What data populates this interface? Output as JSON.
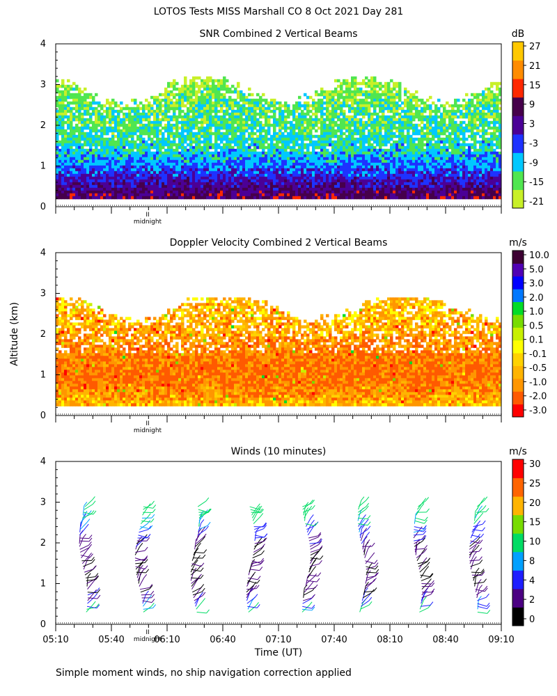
{
  "figure": {
    "title": "LOTOS Tests MISS Marshall CO   8 Oct 2021 Day 281",
    "ylabel": "Altitude (km)",
    "xlabel": "Time (UT)",
    "footnote": "Simple moment winds, no ship navigation correction applied",
    "midnight_label": "midnight",
    "midnight_mark": "II",
    "yticks": [
      "0",
      "1",
      "2",
      "3",
      "4"
    ],
    "ylim": [
      0,
      4
    ],
    "xlim_min": [
      0,
      240
    ],
    "time_ticks": [
      "05:10",
      "05:40",
      "06:10",
      "06:40",
      "07:10",
      "07:40",
      "08:10",
      "08:40",
      "09:10"
    ]
  },
  "colors": {
    "snr": [
      "#c8f028",
      "#50e650",
      "#00c8ff",
      "#1e32ff",
      "#4b0096",
      "#46004b",
      "#ff2800",
      "#ff8c00",
      "#ffc800"
    ],
    "doppler": [
      "#ff0000",
      "#ff5a00",
      "#ff9600",
      "#ffb400",
      "#ffd200",
      "#ffff00",
      "#c8f000",
      "#78dc00",
      "#00dc28",
      "#0078ff",
      "#0000ff",
      "#5000b4",
      "#3c0032"
    ],
    "wind": [
      "#000000",
      "#4b0082",
      "#1e1eff",
      "#00a0ff",
      "#00dc64",
      "#78dc00",
      "#ffb400",
      "#ff6400",
      "#ff0000"
    ]
  },
  "chart_data": [
    {
      "type": "heatmap",
      "title": "SNR Combined 2 Vertical Beams",
      "units": "dB",
      "colorbar_ticks": [
        "27",
        "21",
        "15",
        "9",
        "3",
        "-3",
        "-9",
        "-15",
        "-21"
      ],
      "x_unit": "minutes after 05:10 UT",
      "y_unit": "km",
      "data_range_km": [
        0.25,
        3.2
      ],
      "profile_km": [
        0.25,
        0.6,
        1.0,
        1.5,
        2.0,
        2.5,
        2.9,
        3.2
      ],
      "profile_val": [
        9,
        3,
        -5,
        -11,
        -14,
        -15,
        -17,
        -20
      ]
    },
    {
      "type": "heatmap",
      "title": "Doppler Velocity Combined 2 Vertical Beams",
      "units": "m/s",
      "colorbar_ticks": [
        "10.0",
        "5.0",
        "3.0",
        "2.0",
        "1.0",
        "0.5",
        "0.1",
        "-0.1",
        "-0.5",
        "-1.0",
        "-2.0",
        "-3.0"
      ],
      "x_unit": "minutes after 05:10 UT",
      "y_unit": "km",
      "data_range_km": [
        0.25,
        2.9
      ],
      "profile_km": [
        0.25,
        0.5,
        1.0,
        1.5,
        2.0,
        2.5,
        2.9
      ],
      "profile_val": [
        -0.2,
        -0.6,
        -1.2,
        -1.0,
        -0.6,
        -0.3,
        -0.2
      ]
    },
    {
      "type": "scatter",
      "title": "Winds (10 minutes)",
      "units": "m/s",
      "colorbar_ticks": [
        "30",
        "25",
        "20",
        "15",
        "10",
        "8",
        "4",
        "2",
        "0"
      ],
      "colorbar_bounds": [
        0,
        2,
        4,
        8,
        10,
        15,
        20,
        25,
        30,
        34
      ],
      "x_unit": "minutes after 05:10 UT",
      "profile_times_min": [
        15,
        45,
        75,
        105,
        135,
        165,
        195,
        225
      ],
      "altitude_range_km": [
        0.3,
        2.9
      ],
      "speed_profile_km": [
        0.3,
        0.6,
        1.0,
        1.5,
        2.0,
        2.4,
        2.7,
        2.9
      ],
      "speed_profile_ms": [
        12,
        3,
        2,
        2,
        3,
        9,
        11,
        14
      ]
    }
  ]
}
